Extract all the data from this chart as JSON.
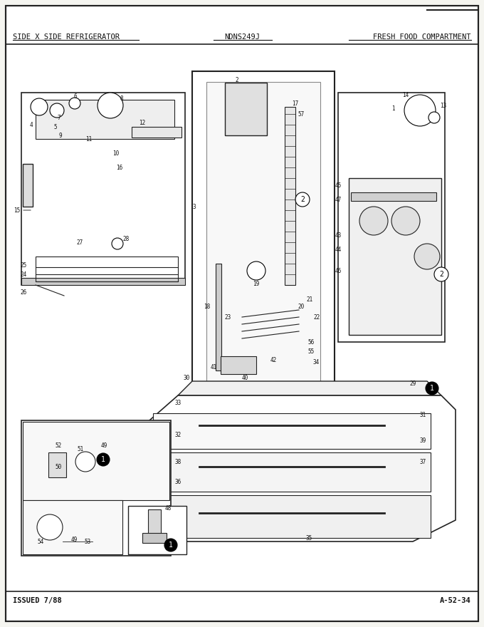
{
  "title_left": "SIDE X SIDE REFRIGERATOR",
  "title_center": "NDNS249J",
  "title_right": "FRESH FOOD COMPARTMENT",
  "footer_left": "ISSUED 7/88",
  "footer_right": "A-52-34",
  "bg_color": "#f5f5f0",
  "border_color": "#222222",
  "text_color": "#111111",
  "fig_width": 6.8,
  "fig_height": 8.8,
  "dpi": 100
}
